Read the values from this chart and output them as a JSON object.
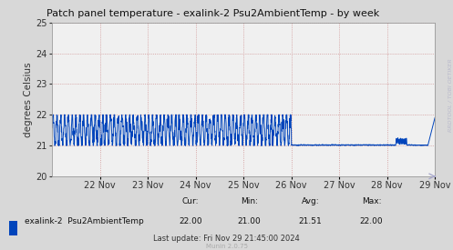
{
  "title": "Patch panel temperature - exalink-2 Psu2AmbientTemp - by week",
  "ylabel": "degrees Celsius",
  "ylim": [
    20,
    25
  ],
  "yticks": [
    20,
    21,
    22,
    23,
    24,
    25
  ],
  "bg_color": "#d8d8d8",
  "plot_bg_color": "#f0f0f0",
  "line_color": "#0044bb",
  "grid_color_major": "#cc8888",
  "grid_color_minor": "#ddaaaa",
  "title_color": "#111111",
  "legend_label": "exalink-2  Psu2AmbientTemp",
  "cur": "22.00",
  "min": "21.00",
  "avg": "21.51",
  "max": "22.00",
  "last_update": "Last update: Fri Nov 29 21:45:00 2024",
  "munin_version": "Munin 2.0.75",
  "xtick_labels": [
    "22 Nov",
    "23 Nov",
    "24 Nov",
    "25 Nov",
    "26 Nov",
    "27 Nov",
    "28 Nov",
    "29 Nov"
  ],
  "rrdtool_label": "RRDTOOL / TOBI OETIKER",
  "num_points": 2016,
  "arrow_color": "#aaaacc"
}
